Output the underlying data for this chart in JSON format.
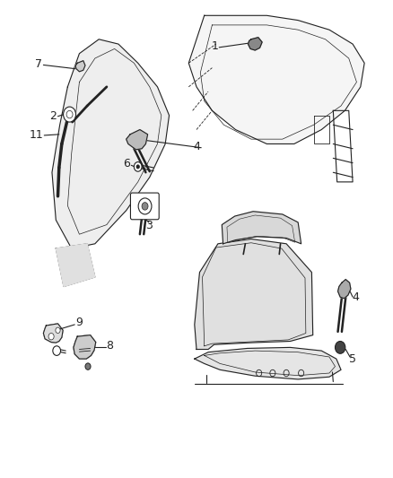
{
  "background_color": "#ffffff",
  "figure_width": 4.38,
  "figure_height": 5.33,
  "dpi": 100,
  "line_color": "#222222",
  "label_fontsize": 9,
  "line_width": 0.8
}
